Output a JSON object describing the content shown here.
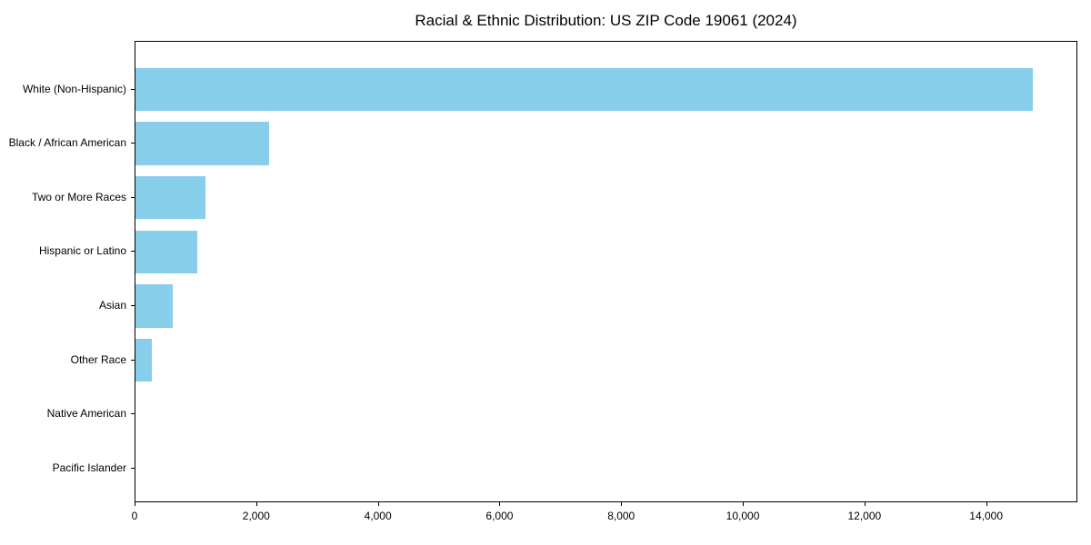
{
  "chart_data": {
    "type": "bar",
    "orientation": "horizontal",
    "title": "Racial & Ethnic Distribution: US ZIP Code 19061 (2024)",
    "categories": [
      "White (Non-Hispanic)",
      "Black / African American",
      "Two or More Races",
      "Hispanic or Latino",
      "Asian",
      "Other Race",
      "Native American",
      "Pacific Islander"
    ],
    "values": [
      14760,
      2200,
      1150,
      1020,
      620,
      270,
      0,
      0
    ],
    "xlabel": "",
    "ylabel": "",
    "xlim": [
      0,
      15500
    ],
    "xticks": [
      0,
      2000,
      4000,
      6000,
      8000,
      10000,
      12000,
      14000
    ],
    "xtick_labels": [
      "0",
      "2,000",
      "4,000",
      "6,000",
      "8,000",
      "10,000",
      "12,000",
      "14,000"
    ],
    "bar_color": "#87CEEB",
    "text_color": "#000000",
    "grid": false,
    "legend": "none"
  }
}
